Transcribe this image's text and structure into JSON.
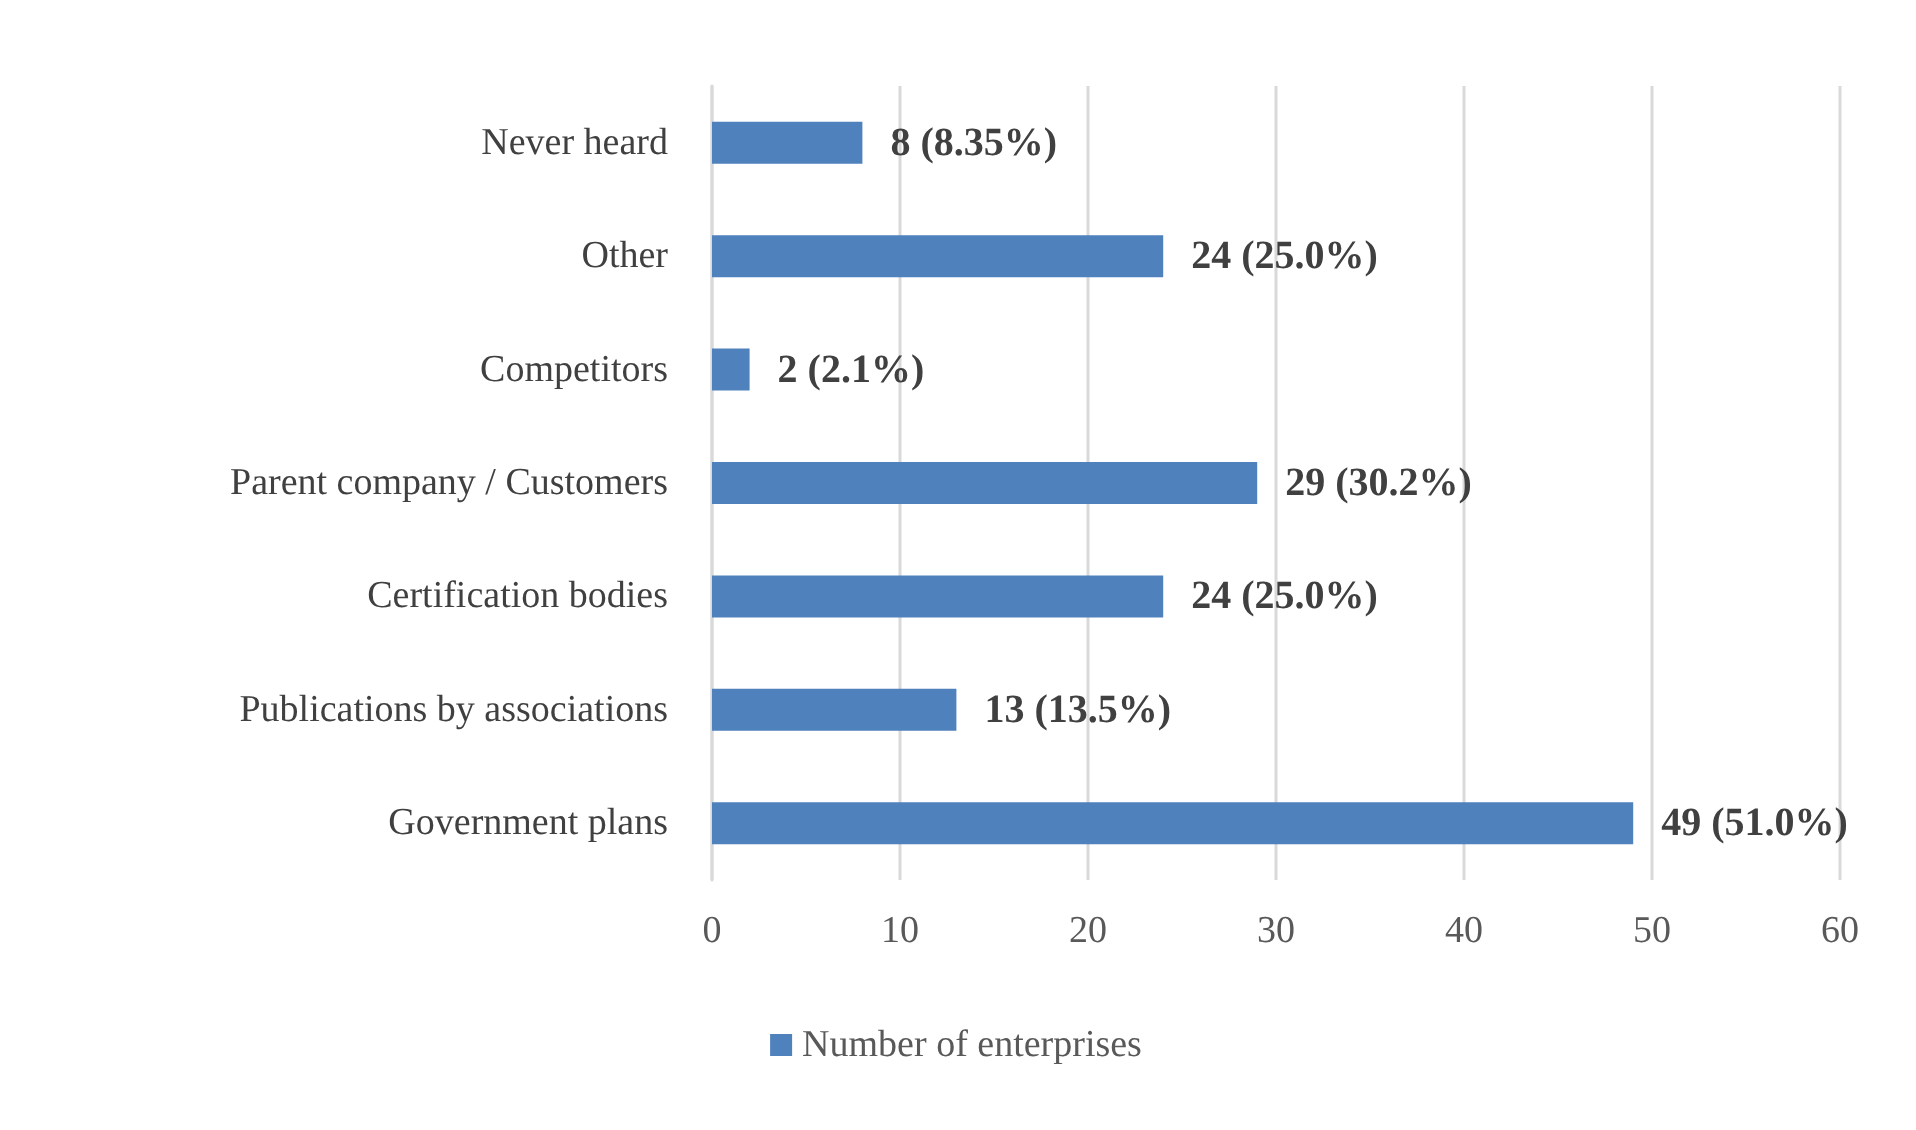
{
  "chart_data": {
    "type": "bar",
    "orientation": "horizontal",
    "categories": [
      "Never heard",
      "Other",
      "Competitors",
      "Parent company / Customers",
      "Certification bodies",
      "Publications by associations",
      "Government plans"
    ],
    "series": [
      {
        "name": "Number of enterprises",
        "color": "#4f81bd",
        "values": [
          8,
          24,
          2,
          29,
          24,
          13,
          49
        ],
        "value_labels": [
          "8 (8.35%)",
          "24 (25.0%)",
          "2 (2.1%)",
          "29 (30.2%)",
          "24 (25.0%)",
          "13 (13.5%)",
          "49 (51.0%)"
        ]
      }
    ],
    "xlim": [
      0,
      60
    ],
    "xticks": [
      0,
      10,
      20,
      30,
      40,
      50,
      60
    ],
    "grid": "x",
    "legend": "bottom"
  }
}
